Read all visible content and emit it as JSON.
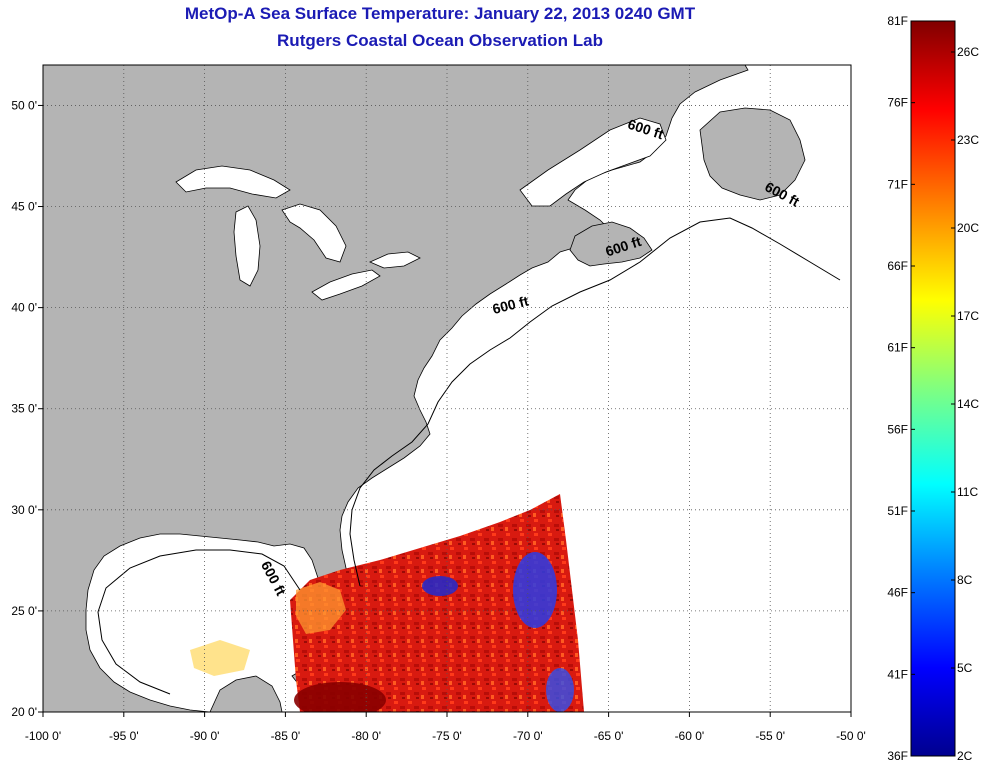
{
  "title": "MetOp-A Sea Surface Temperature:  January 22, 2013 0240 GMT",
  "subtitle": "Rutgers Coastal Ocean Observation Lab",
  "map": {
    "lon_range": [
      -100,
      -50
    ],
    "lat_range": [
      20,
      52
    ],
    "lon_ticks": [
      {
        "lon": -100,
        "label": "-100 0'"
      },
      {
        "lon": -95,
        "label": "-95 0'"
      },
      {
        "lon": -90,
        "label": "-90 0'"
      },
      {
        "lon": -85,
        "label": "-85 0'"
      },
      {
        "lon": -80,
        "label": "-80 0'"
      },
      {
        "lon": -75,
        "label": "-75 0'"
      },
      {
        "lon": -70,
        "label": "-70 0'"
      },
      {
        "lon": -65,
        "label": "-65 0'"
      },
      {
        "lon": -60,
        "label": "-60 0'"
      },
      {
        "lon": -55,
        "label": "-55 0'"
      },
      {
        "lon": -50,
        "label": "-50 0'"
      }
    ],
    "lat_ticks": [
      {
        "lat": 20,
        "label": "20 0'"
      },
      {
        "lat": 25,
        "label": "25 0'"
      },
      {
        "lat": 30,
        "label": "30 0'"
      },
      {
        "lat": 35,
        "label": "35 0'"
      },
      {
        "lat": 40,
        "label": "40 0'"
      },
      {
        "lat": 45,
        "label": "45 0'"
      },
      {
        "lat": 50,
        "label": "50 0'"
      }
    ],
    "land_color": "#b4b4b4",
    "water_color": "#ffffff",
    "contour_labels": [
      {
        "text": "600 ft",
        "lon": -62.8,
        "lat": 48.6,
        "rotate": 18
      },
      {
        "text": "600 ft",
        "lon": -54.4,
        "lat": 45.4,
        "rotate": 28
      },
      {
        "text": "600 ft",
        "lon": -64.0,
        "lat": 42.8,
        "rotate": -18
      },
      {
        "text": "600 ft",
        "lon": -71.0,
        "lat": 39.9,
        "rotate": -14
      },
      {
        "text": "600 ft",
        "lon": -86.0,
        "lat": 26.5,
        "rotate": 62
      }
    ]
  },
  "colorbar": {
    "labels_f": [
      "81F",
      "76F",
      "71F",
      "66F",
      "61F",
      "56F",
      "51F",
      "46F",
      "41F",
      "36F"
    ],
    "labels_c": [
      "26C",
      "23C",
      "20C",
      "17C",
      "14C",
      "11C",
      "8C",
      "5C",
      "2C"
    ],
    "colors": [
      "#00008f",
      "#0000ff",
      "#0080ff",
      "#00ffff",
      "#80ff80",
      "#ffff00",
      "#ff8000",
      "#ff0000",
      "#800000"
    ]
  }
}
